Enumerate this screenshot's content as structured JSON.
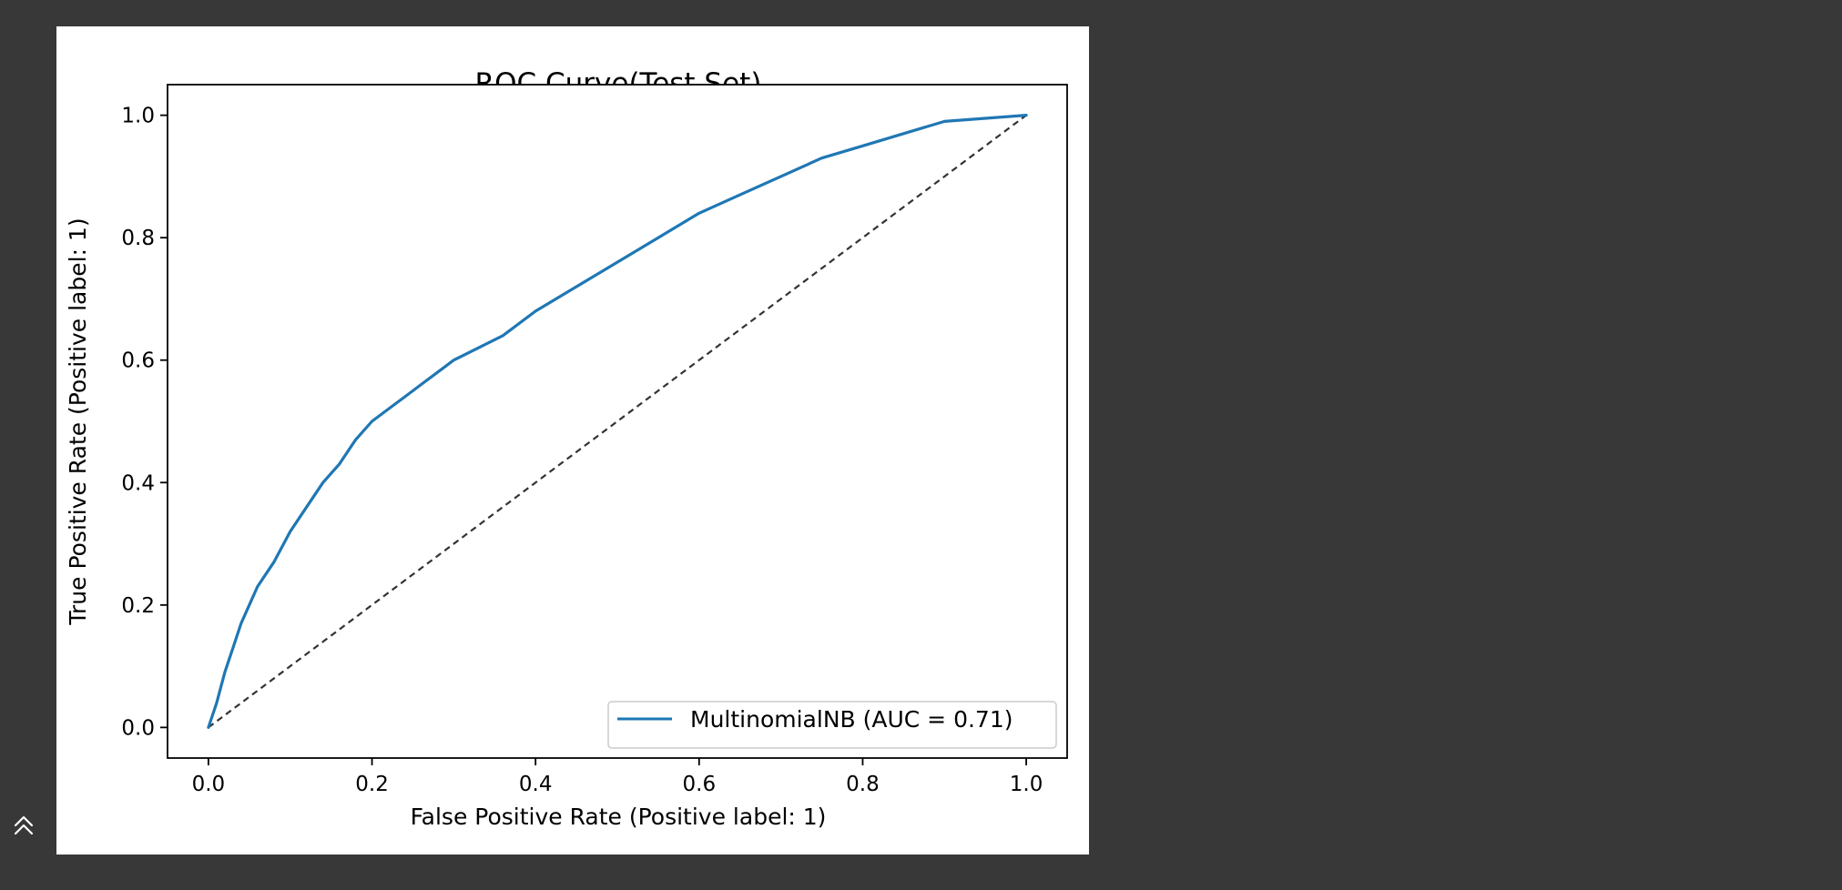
{
  "chart_data": {
    "type": "line",
    "title": "ROC Curve(Test Set)",
    "xlabel": "False Positive Rate (Positive label: 1)",
    "ylabel": "True Positive Rate (Positive label: 1)",
    "xlim": [
      -0.05,
      1.05
    ],
    "ylim": [
      -0.05,
      1.05
    ],
    "xticks": [
      0.0,
      0.2,
      0.4,
      0.6,
      0.8,
      1.0
    ],
    "xtick_labels": [
      "0.0",
      "0.2",
      "0.4",
      "0.6",
      "0.8",
      "1.0"
    ],
    "yticks": [
      0.0,
      0.2,
      0.4,
      0.6,
      0.8,
      1.0
    ],
    "ytick_labels": [
      "0.0",
      "0.2",
      "0.4",
      "0.6",
      "0.8",
      "1.0"
    ],
    "grid": false,
    "legend_position": "lower-right",
    "series": [
      {
        "name": "MultinomialNB (AUC = 0.71)",
        "color": "#1f77b4",
        "style": "solid",
        "x": [
          0.0,
          0.01,
          0.02,
          0.03,
          0.04,
          0.05,
          0.06,
          0.08,
          0.1,
          0.12,
          0.14,
          0.16,
          0.18,
          0.2,
          0.22,
          0.24,
          0.26,
          0.28,
          0.3,
          0.33,
          0.36,
          0.4,
          0.45,
          0.5,
          0.55,
          0.6,
          0.65,
          0.7,
          0.75,
          0.8,
          0.85,
          0.9,
          0.95,
          1.0
        ],
        "y": [
          0.0,
          0.04,
          0.09,
          0.13,
          0.17,
          0.2,
          0.23,
          0.27,
          0.32,
          0.36,
          0.4,
          0.43,
          0.47,
          0.5,
          0.52,
          0.54,
          0.56,
          0.58,
          0.6,
          0.62,
          0.64,
          0.68,
          0.72,
          0.76,
          0.8,
          0.84,
          0.87,
          0.9,
          0.93,
          0.95,
          0.97,
          0.99,
          0.995,
          1.0
        ]
      }
    ],
    "reference_line": {
      "x": [
        0.0,
        1.0
      ],
      "y": [
        0.0,
        1.0
      ],
      "color": "#333333",
      "style": "dashed"
    }
  },
  "ui": {
    "collapse_icon": "chevron-double-up-icon",
    "background_color": "#383838",
    "panel_color": "#ffffff"
  }
}
